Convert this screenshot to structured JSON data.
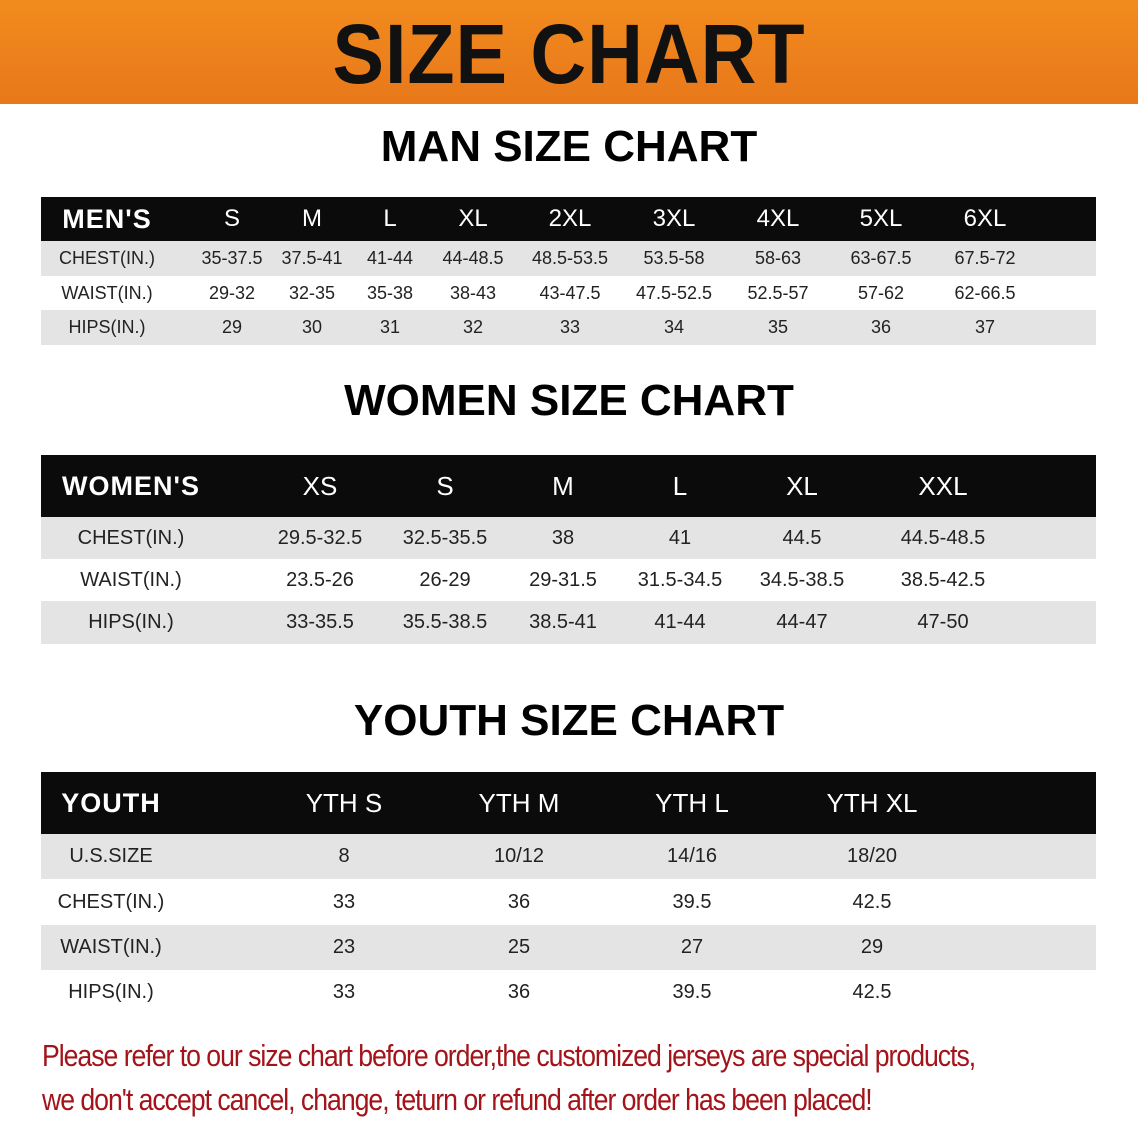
{
  "banner_title": "SIZE CHART",
  "men": {
    "title": "MAN SIZE CHART",
    "header": [
      "MEN'S",
      "S",
      "M",
      "L",
      "XL",
      "2XL",
      "3XL",
      "4XL",
      "5XL",
      "6XL"
    ],
    "rows": [
      [
        "CHEST(IN.)",
        "35-37.5",
        "37.5-41",
        "41-44",
        "44-48.5",
        "48.5-53.5",
        "53.5-58",
        "58-63",
        "63-67.5",
        "67.5-72"
      ],
      [
        "WAIST(IN.)",
        "29-32",
        "32-35",
        "35-38",
        "38-43",
        "43-47.5",
        "47.5-52.5",
        "52.5-57",
        "57-62",
        "62-66.5"
      ],
      [
        "HIPS(IN.)",
        "29",
        "30",
        "31",
        "32",
        "33",
        "34",
        "35",
        "36",
        "37"
      ]
    ]
  },
  "women": {
    "title": "WOMEN SIZE CHART",
    "header": [
      "WOMEN'S",
      "XS",
      "S",
      "M",
      "L",
      "XL",
      "XXL"
    ],
    "rows": [
      [
        "CHEST(IN.)",
        "29.5-32.5",
        "32.5-35.5",
        "38",
        "41",
        "44.5",
        "44.5-48.5"
      ],
      [
        "WAIST(IN.)",
        "23.5-26",
        "26-29",
        "29-31.5",
        "31.5-34.5",
        "34.5-38.5",
        "38.5-42.5"
      ],
      [
        "HIPS(IN.)",
        "33-35.5",
        "35.5-38.5",
        "38.5-41",
        "41-44",
        "44-47",
        "47-50"
      ]
    ]
  },
  "youth": {
    "title": "YOUTH SIZE CHART",
    "header": [
      "YOUTH",
      "YTH S",
      "YTH M",
      "YTH L",
      "YTH XL"
    ],
    "rows": [
      [
        "U.S.SIZE",
        "8",
        "10/12",
        "14/16",
        "18/20"
      ],
      [
        "CHEST(IN.)",
        "33",
        "36",
        "39.5",
        "42.5"
      ],
      [
        "WAIST(IN.)",
        "23",
        "25",
        "27",
        "29"
      ],
      [
        "HIPS(IN.)",
        "33",
        "36",
        "39.5",
        "42.5"
      ]
    ]
  },
  "notice": [
    "Please refer to our size chart before order,the customized jerseys are special products,",
    "we don't accept cancel, change, teturn or refund after order has been placed!"
  ],
  "colors": {
    "banner": "#f08a1c",
    "header_row": "#0b0b0b",
    "stripe": "#e4e4e4",
    "notice": "#a3141a"
  }
}
